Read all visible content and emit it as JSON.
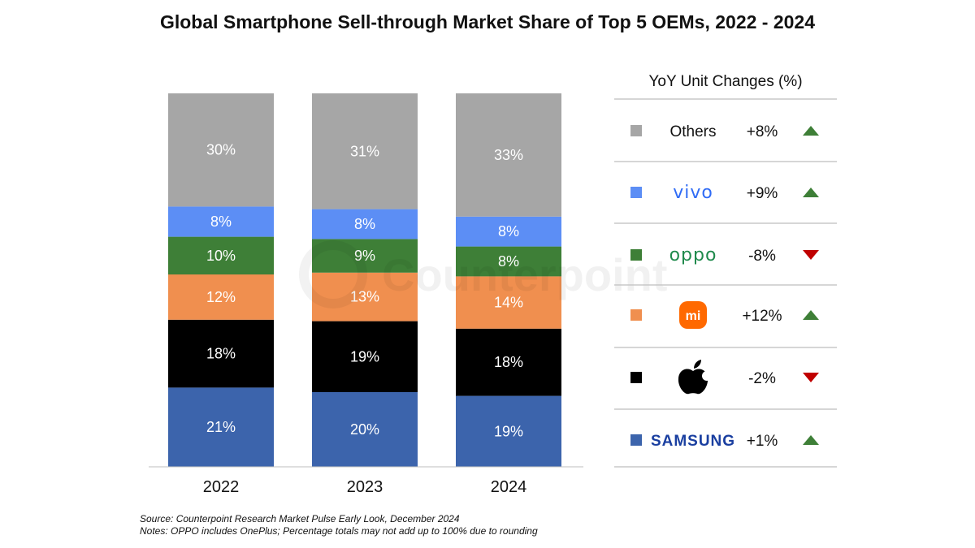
{
  "chart_data": {
    "type": "bar",
    "stacked": true,
    "title": "Global Smartphone Sell-through Market Share of Top 5 OEMs, 2022 - 2024",
    "categories": [
      "2022",
      "2023",
      "2024"
    ],
    "ylim": [
      0,
      100
    ],
    "grid": false,
    "series": [
      {
        "name": "SAMSUNG",
        "color": "#3c64ac",
        "label_color": "#ffffff",
        "values": [
          21,
          20,
          19
        ]
      },
      {
        "name": "Apple",
        "color": "#000000",
        "label_color": "#ffffff",
        "values": [
          18,
          19,
          18
        ]
      },
      {
        "name": "mi",
        "color": "#f08f4f",
        "label_color": "#ffffff",
        "values": [
          12,
          13,
          14
        ]
      },
      {
        "name": "oppo",
        "color": "#3e7f37",
        "label_color": "#ffffff",
        "values": [
          10,
          9,
          8
        ]
      },
      {
        "name": "vivo",
        "color": "#5c8ef5",
        "label_color": "#ffffff",
        "values": [
          8,
          8,
          8
        ]
      },
      {
        "name": "Others",
        "color": "#a6a6a6",
        "label_color": "#ffffff",
        "values": [
          30,
          31,
          33
        ]
      }
    ],
    "value_labels": [
      [
        "21%",
        "18%",
        "12%",
        "10%",
        "8%",
        "30%"
      ],
      [
        "20%",
        "19%",
        "13%",
        "9%",
        "8%",
        "31%"
      ],
      [
        "19%",
        "18%",
        "14%",
        "8%",
        "8%",
        "33%"
      ]
    ],
    "legend_placement": "right"
  },
  "yoy": {
    "title": "YoY Unit Changes (%)",
    "rows": [
      {
        "brand": "Others",
        "brand_icon": "text",
        "color": "#a6a6a6",
        "change": "+8%",
        "direction": "up"
      },
      {
        "brand": "vivo",
        "brand_icon": "vivo-logo",
        "color": "#5c8ef5",
        "change": "+9%",
        "direction": "up"
      },
      {
        "brand": "oppo",
        "brand_icon": "oppo-logo",
        "color": "#3e7f37",
        "change": "-8%",
        "direction": "down"
      },
      {
        "brand": "mi",
        "brand_icon": "xiaomi-logo",
        "color": "#f08f4f",
        "change": "+12%",
        "direction": "up"
      },
      {
        "brand": "",
        "brand_icon": "apple-logo",
        "color": "#000000",
        "change": "-2%",
        "direction": "down"
      },
      {
        "brand": "SAMSUNG",
        "brand_icon": "samsung-logo",
        "color": "#3c64ac",
        "change": "+1%",
        "direction": "up"
      }
    ],
    "up_color": "#3e7f37",
    "down_color": "#c00000"
  },
  "watermark": "Counterpoint",
  "footer": {
    "source": "Source: Counterpoint Research Market Pulse Early Look, December 2024",
    "notes": "Notes: OPPO includes OnePlus; Percentage totals may not add up to 100% due to rounding"
  }
}
